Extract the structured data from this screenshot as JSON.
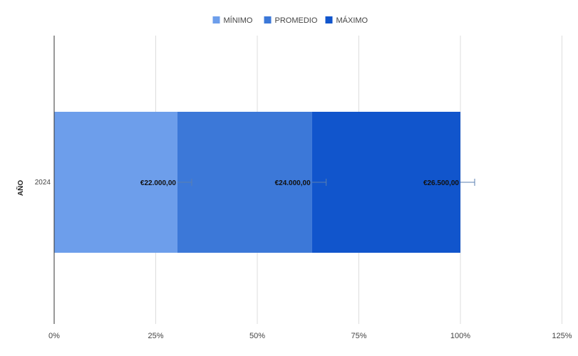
{
  "chart_data": {
    "type": "bar",
    "orientation": "horizontal",
    "stacked": "percent",
    "categories": [
      "2024"
    ],
    "ylabel": "AÑO",
    "xlabel": "",
    "title": "",
    "x_ticks": [
      "0%",
      "25%",
      "50%",
      "75%",
      "100%",
      "125%"
    ],
    "xlim": [
      0,
      125
    ],
    "grid": true,
    "legend_position": "top",
    "series": [
      {
        "name": "MÍNIMO",
        "values": [
          22000
        ],
        "label": "€22.000,00",
        "color": "#6d9eeb"
      },
      {
        "name": "PROMEDIO",
        "values": [
          24000
        ],
        "label": "€24.000,00",
        "color": "#3c78d8"
      },
      {
        "name": "MÁXIMO",
        "values": [
          26500
        ],
        "label": "€26.500,00",
        "color": "#1155cc"
      }
    ]
  }
}
